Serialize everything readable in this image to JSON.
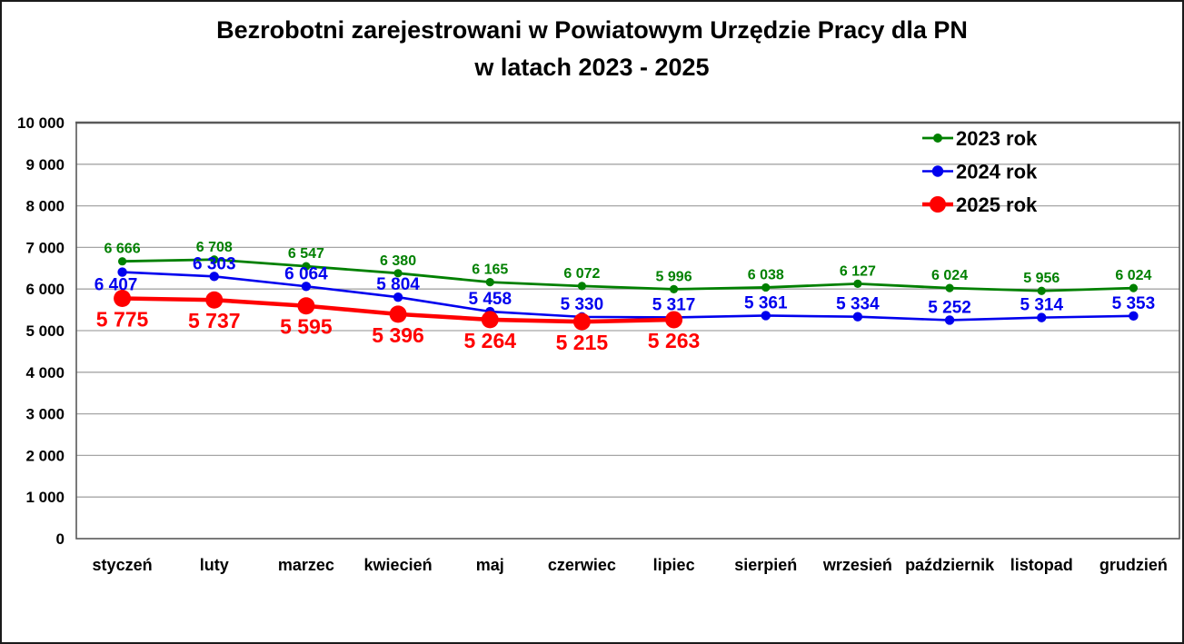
{
  "title": {
    "line1": "Bezrobotni zarejestrowani w Powiatowym Urzędzie Pracy dla PN",
    "line2": "w latach 2023 - 2025"
  },
  "chart_data": {
    "type": "line",
    "categories": [
      "styczeń",
      "luty",
      "marzec",
      "kwiecień",
      "maj",
      "czerwiec",
      "lipiec",
      "sierpień",
      "wrzesień",
      "październik",
      "listopad",
      "grudzień"
    ],
    "series": [
      {
        "name": "2023 rok",
        "color": "#008000",
        "values": [
          6666,
          6708,
          6547,
          6380,
          6165,
          6072,
          5996,
          6038,
          6127,
          6024,
          5956,
          6024
        ]
      },
      {
        "name": "2024 rok",
        "color": "#0000EE",
        "values": [
          6407,
          6303,
          6064,
          5804,
          5458,
          5330,
          5317,
          5361,
          5334,
          5252,
          5314,
          5353
        ]
      },
      {
        "name": "2025 rok",
        "color": "#FF0000",
        "values": [
          5775,
          5737,
          5595,
          5396,
          5264,
          5215,
          5263,
          null,
          null,
          null,
          null,
          null
        ]
      }
    ],
    "ylim": [
      0,
      10000
    ],
    "ytick_step": 1000,
    "ytick_labels": [
      "0",
      "1 000",
      "2 000",
      "3 000",
      "4 000",
      "5 000",
      "6 000",
      "7 000",
      "8 000",
      "9 000",
      "10 000"
    ],
    "grid": "horizontal-gridlines",
    "legend_position": "top-right",
    "legend_entries": [
      "2023 rok",
      "2024 rok",
      "2025 rok"
    ],
    "data_labels": true,
    "number_format": "space-thousands",
    "axis_text_color": "#000000",
    "gridline_color": "#a6a6a6",
    "plot_border_color": "#595959"
  }
}
